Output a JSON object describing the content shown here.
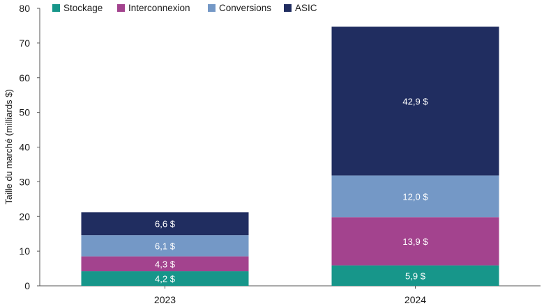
{
  "chart_data": {
    "type": "bar",
    "stacked": true,
    "categories": [
      "2023",
      "2024"
    ],
    "series": [
      {
        "name": "Stockage",
        "values": [
          4.2,
          5.9
        ],
        "labels": [
          "4,2 $",
          "5,9 $"
        ],
        "color": "#17968a"
      },
      {
        "name": "Interconnexion",
        "values": [
          4.3,
          13.9
        ],
        "labels": [
          "4,3 $",
          "13,9 $"
        ],
        "color": "#a3438e"
      },
      {
        "name": "Conversions",
        "values": [
          6.1,
          12.0
        ],
        "labels": [
          "6,1 $",
          "12,0 $"
        ],
        "color": "#7498c6"
      },
      {
        "name": "ASIC",
        "values": [
          6.6,
          42.9
        ],
        "labels": [
          "6,6 $",
          "42,9 $"
        ],
        "color": "#202d60"
      }
    ],
    "ylabel": "Taille du marché (milliards $)",
    "xlabel": "",
    "ylim": [
      0,
      80
    ],
    "yticks": [
      0,
      10,
      20,
      30,
      40,
      50,
      60,
      70,
      80
    ],
    "grid": false,
    "legend": "top-left"
  }
}
